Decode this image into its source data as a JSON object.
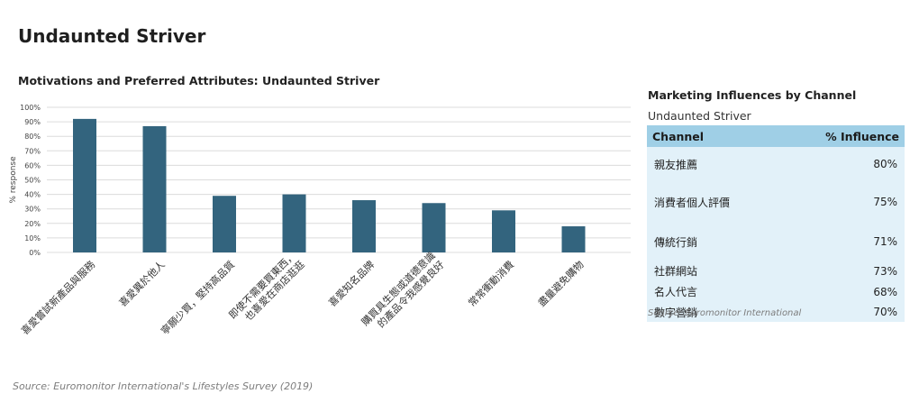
{
  "page": {
    "title": "Undaunted Striver"
  },
  "chart_data": {
    "type": "bar",
    "title": "Motivations and Preferred Attributes: Undaunted Striver",
    "xlabel": "",
    "ylabel": "% response",
    "ylim": [
      0,
      100
    ],
    "yticks": [
      "0%",
      "10%",
      "20%",
      "30%",
      "40%",
      "50%",
      "60%",
      "70%",
      "80%",
      "90%",
      "100%"
    ],
    "grid": true,
    "categories": [
      [
        "喜愛嘗試新產品與服務"
      ],
      [
        "喜愛異於他人"
      ],
      [
        "寧願少買，堅持高品質"
      ],
      [
        "即使不需要買東西，",
        "也喜愛在商店逛逛"
      ],
      [
        "喜愛知名品牌"
      ],
      [
        "購買具生態或道德意識",
        "的產品令我感覺良好"
      ],
      [
        "常常衝動消費"
      ],
      [
        "盡量避免購物"
      ]
    ],
    "values": [
      92,
      87,
      39,
      40,
      36,
      34,
      29,
      18
    ],
    "bar_color": "#33647e",
    "source": "Source: Euromonitor International's Lifestyles Survey (2019)"
  },
  "influence_table": {
    "title": "Marketing Influences by Channel",
    "subtitle": "Undaunted Striver",
    "headers": {
      "channel": "Channel",
      "influence": "% Influence"
    },
    "rows": [
      {
        "channel": "親友推薦",
        "influence": "80%"
      },
      {
        "channel": "消費者個人評價",
        "influence": "75%"
      },
      {
        "channel": "傳統行銷",
        "influence": "71%"
      },
      {
        "channel": "社群網站",
        "influence": "73%"
      },
      {
        "channel": "名人代言",
        "influence": "68%"
      },
      {
        "channel": "數字營銷",
        "influence": "70%"
      }
    ],
    "source": "Source: Euromonitor International",
    "header_color": "#9fcfe6",
    "row_color": "#e2f1f9"
  }
}
